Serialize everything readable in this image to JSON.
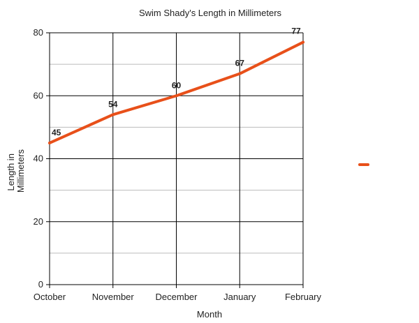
{
  "chart_data": {
    "type": "line",
    "title": "Swim Shady's Length in Millimeters",
    "xlabel": "Month",
    "ylabel": [
      "Length in",
      "Millimeters"
    ],
    "categories": [
      "October",
      "November",
      "December",
      "January",
      "February"
    ],
    "series": [
      {
        "values": [
          45,
          54,
          60,
          67,
          77
        ],
        "color": "#e8501a",
        "data_labels": [
          "45",
          "54",
          "60",
          "67",
          "77"
        ]
      }
    ],
    "ylim": [
      0,
      80
    ],
    "y_major_ticks": [
      0,
      20,
      40,
      60,
      80
    ],
    "y_minor_step": 10,
    "grid": true,
    "legend_placement": "right",
    "grid_major_color": "#000000",
    "grid_minor_color": "#bbbbbb"
  }
}
